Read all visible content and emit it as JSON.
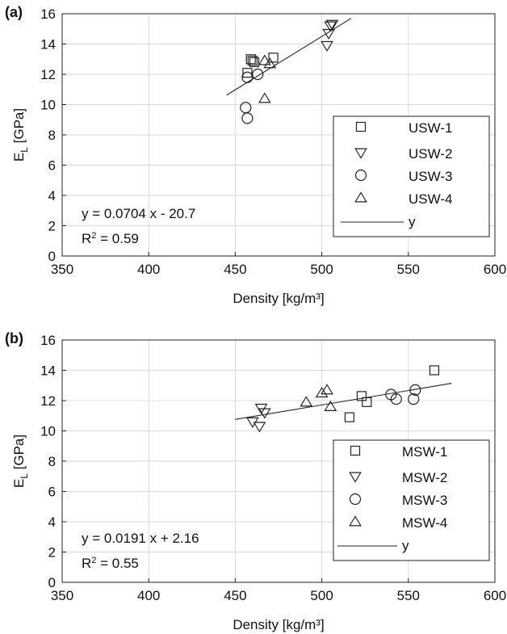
{
  "chart_data": [
    {
      "panel_label": "(a)",
      "type": "scatter",
      "xlabel": "Density [kg/m³]",
      "ylabel": "E_L [GPa]",
      "ylabel_main": "E",
      "ylabel_sub": "L",
      "ylabel_rest": " [GPa]",
      "xlim": [
        350,
        600
      ],
      "ylim": [
        0,
        16
      ],
      "xticks": [
        350,
        400,
        450,
        500,
        550,
        600
      ],
      "yticks": [
        0,
        2,
        4,
        6,
        8,
        10,
        12,
        14,
        16
      ],
      "grid": true,
      "legend_position": "bottom-right",
      "series": [
        {
          "name": "USW-1",
          "marker": "square",
          "points": [
            [
              457,
              12.1
            ],
            [
              459,
              13.0
            ],
            [
              460,
              12.9
            ],
            [
              461,
              12.8
            ],
            [
              472,
              13.1
            ]
          ]
        },
        {
          "name": "USW-2",
          "marker": "triangle-down",
          "points": [
            [
              503,
              13.9
            ],
            [
              504,
              14.7
            ],
            [
              505,
              15.2
            ],
            [
              506,
              15.3
            ]
          ]
        },
        {
          "name": "USW-3",
          "marker": "circle",
          "points": [
            [
              456,
              9.8
            ],
            [
              457,
              9.1
            ],
            [
              457,
              11.8
            ],
            [
              463,
              12.0
            ]
          ]
        },
        {
          "name": "USW-4",
          "marker": "triangle-up",
          "points": [
            [
              467,
              10.4
            ],
            [
              467,
              12.9
            ],
            [
              470,
              12.7
            ]
          ]
        }
      ],
      "fit_line": {
        "name": "y",
        "slope": 0.0704,
        "intercept": -20.7,
        "x_range": [
          445,
          517
        ]
      },
      "equation": "y = 0.0704 x - 20.7",
      "r2_label": "R",
      "r2_sup": "2",
      "r2_value": " = 0.59"
    },
    {
      "panel_label": "(b)",
      "type": "scatter",
      "xlabel": "Density [kg/m³]",
      "ylabel": "E_L [GPa]",
      "ylabel_main": "E",
      "ylabel_sub": "L",
      "ylabel_rest": " [GPa]",
      "xlim": [
        350,
        600
      ],
      "ylim": [
        0,
        16
      ],
      "xticks": [
        350,
        400,
        450,
        500,
        550,
        600
      ],
      "yticks": [
        0,
        2,
        4,
        6,
        8,
        10,
        12,
        14,
        16
      ],
      "grid": true,
      "legend_position": "bottom-right",
      "series": [
        {
          "name": "MSW-1",
          "marker": "square",
          "points": [
            [
              516,
              10.9
            ],
            [
              523,
              12.3
            ],
            [
              526,
              11.9
            ],
            [
              565,
              14.0
            ]
          ]
        },
        {
          "name": "MSW-2",
          "marker": "triangle-down",
          "points": [
            [
              460,
              10.6
            ],
            [
              464,
              10.3
            ],
            [
              465,
              11.5
            ],
            [
              467,
              11.2
            ]
          ]
        },
        {
          "name": "MSW-3",
          "marker": "circle",
          "points": [
            [
              540,
              12.4
            ],
            [
              543,
              12.1
            ],
            [
              553,
              12.1
            ],
            [
              554,
              12.7
            ]
          ]
        },
        {
          "name": "MSW-4",
          "marker": "triangle-up",
          "points": [
            [
              491,
              11.9
            ],
            [
              500,
              12.5
            ],
            [
              503,
              12.7
            ],
            [
              505,
              11.6
            ]
          ]
        }
      ],
      "fit_line": {
        "name": "y",
        "slope": 0.0191,
        "intercept": 2.16,
        "x_range": [
          450,
          575
        ]
      },
      "equation": "y = 0.0191 x + 2.16",
      "r2_label": "R",
      "r2_sup": "2",
      "r2_value": " = 0.55"
    }
  ]
}
